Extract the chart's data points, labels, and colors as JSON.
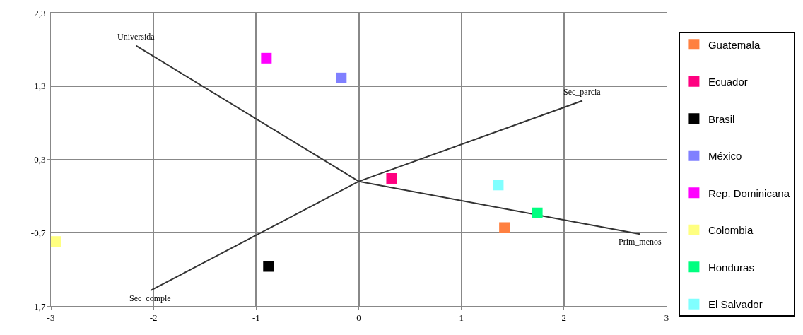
{
  "chart_data": {
    "type": "scatter",
    "marker": "square",
    "grid": true,
    "legend": "right",
    "xlim": [
      -3,
      3
    ],
    "xticks": [
      -3,
      -2,
      -1,
      0,
      1,
      2,
      3
    ],
    "ylim": [
      -1.7,
      2.3
    ],
    "yticks": [
      {
        "value": 2.3,
        "label": "2,3"
      },
      {
        "value": 1.3,
        "label": "1,3"
      },
      {
        "value": 0.3,
        "label": "0,3"
      },
      {
        "value": -0.7,
        "label": "-0,7"
      },
      {
        "value": -1.7,
        "label": "-1,7"
      }
    ],
    "series": [
      {
        "name": "Guatemala",
        "color": "#ff8040",
        "x": [
          1.42
        ],
        "values": [
          -0.63
        ]
      },
      {
        "name": "Ecuador",
        "color": "#ff0080",
        "x": [
          0.32
        ],
        "values": [
          0.04
        ]
      },
      {
        "name": "Brasil",
        "color": "#000000",
        "x": [
          -0.88
        ],
        "values": [
          -1.16
        ]
      },
      {
        "name": "México",
        "color": "#8080ff",
        "x": [
          -0.17
        ],
        "values": [
          1.41
        ]
      },
      {
        "name": "Rep. Dominicana",
        "color": "#ff00ff",
        "x": [
          -0.9
        ],
        "values": [
          1.68
        ]
      },
      {
        "name": "Colombia",
        "color": "#ffff80",
        "x": [
          -2.95
        ],
        "values": [
          -0.82
        ]
      },
      {
        "name": "Honduras",
        "color": "#00ff80",
        "x": [
          1.74
        ],
        "values": [
          -0.43
        ]
      },
      {
        "name": "El Salvador",
        "color": "#80ffff",
        "x": [
          1.36
        ],
        "values": [
          -0.05
        ]
      },
      {
        "type": "line",
        "color": "#333333",
        "marker": "none",
        "x": [
          -2.17,
          0,
          2.74
        ],
        "values": [
          1.85,
          0,
          -0.72
        ]
      },
      {
        "type": "line",
        "color": "#333333",
        "marker": "none",
        "x": [
          -2.03,
          0,
          2.18
        ],
        "values": [
          -1.49,
          0,
          1.1
        ]
      }
    ],
    "annotations": [
      {
        "text": "Universida",
        "x": -2.17,
        "y": 1.85
      },
      {
        "text": "Sec_parcia",
        "x": 2.18,
        "y": 1.1
      },
      {
        "text": "Prim_menos",
        "x": 2.74,
        "y": -0.72
      },
      {
        "text": "Sec_comple",
        "x": -2.03,
        "y": -1.49
      }
    ]
  }
}
